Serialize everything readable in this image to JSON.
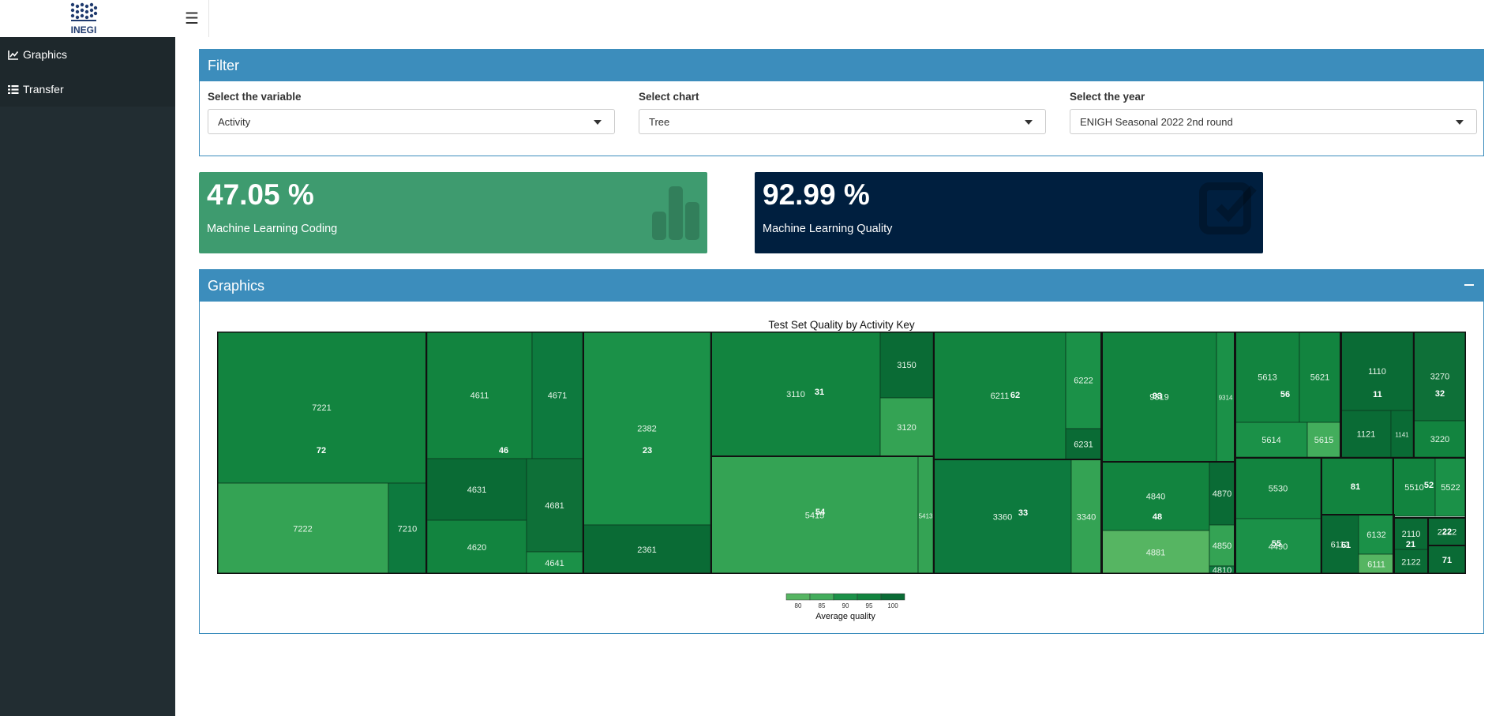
{
  "app": {
    "logo_text": "INEGI"
  },
  "sidebar": {
    "items": [
      {
        "label": "Graphics",
        "icon": "line-chart-icon"
      },
      {
        "label": "Transfer",
        "icon": "list-icon"
      }
    ]
  },
  "filter": {
    "title": "Filter",
    "variable": {
      "label": "Select the variable",
      "value": "Activity"
    },
    "chart": {
      "label": "Select chart",
      "value": "Tree"
    },
    "year": {
      "label": "Select the year",
      "value": "ENIGH Seasonal 2022 2nd round"
    }
  },
  "value_boxes": [
    {
      "value": "47.05 %",
      "subtitle": "Machine Learning Coding",
      "color": "#3e9b6f",
      "icon": "bar-chart-icon"
    },
    {
      "value": "92.99 %",
      "subtitle": "Machine Learning Quality",
      "color": "#001f3f",
      "icon": "check-square-icon"
    }
  ],
  "graphics": {
    "title": "Graphics",
    "collapse_icon": "minus-icon"
  },
  "chart_data": {
    "type": "treemap",
    "title": "Test Set Quality by Activity Key",
    "legend_title": "Average quality",
    "legend_ticks": [
      "80",
      "85",
      "90",
      "95",
      "100"
    ],
    "colors": {
      "c1": "#0d7a3e",
      "c2": "#12843f",
      "c3": "#1b9148",
      "c4": "#34a354",
      "c5": "#43ad5c",
      "c6": "#0a6b35",
      "c7": "#0e7038",
      "c8": "#56b562"
    },
    "groups": [
      {
        "label": "72",
        "leaves": [
          "7221",
          "7222",
          "7210"
        ]
      },
      {
        "label": "46",
        "leaves": [
          "4611",
          "4671",
          "4631",
          "4681",
          "4620",
          "4641"
        ]
      },
      {
        "label": "23",
        "leaves": [
          "2382",
          "2361"
        ]
      },
      {
        "label": "31",
        "leaves": [
          "3110",
          "3150",
          "3120"
        ]
      },
      {
        "label": "54",
        "leaves": [
          "5415",
          "5413"
        ]
      },
      {
        "label": "62",
        "leaves": [
          "6211",
          "6222",
          "6231"
        ]
      },
      {
        "label": "33",
        "leaves": [
          "3360",
          "3340"
        ]
      },
      {
        "label": "93",
        "leaves": [
          "9319",
          "9314"
        ]
      },
      {
        "label": "48",
        "leaves": [
          "4840",
          "4870",
          "4881",
          "4850",
          "4810"
        ]
      },
      {
        "label": "56",
        "leaves": [
          "5613",
          "5621",
          "5614",
          "5615"
        ]
      },
      {
        "label": "11",
        "leaves": [
          "1110",
          "1121",
          "1141"
        ]
      },
      {
        "label": "32",
        "leaves": [
          "3270",
          "3220"
        ]
      },
      {
        "label": "55",
        "leaves": [
          "5530",
          "4490"
        ]
      },
      {
        "label": "81",
        "leaves": []
      },
      {
        "label": "52",
        "leaves": [
          "5510",
          "5522"
        ]
      },
      {
        "label": "61",
        "leaves": [
          "6112",
          "6132",
          "6111"
        ]
      },
      {
        "label": "21",
        "leaves": [
          "2110",
          "2122"
        ]
      },
      {
        "label": "22",
        "leaves": [
          "2222"
        ]
      },
      {
        "label": "71",
        "leaves": []
      }
    ]
  }
}
